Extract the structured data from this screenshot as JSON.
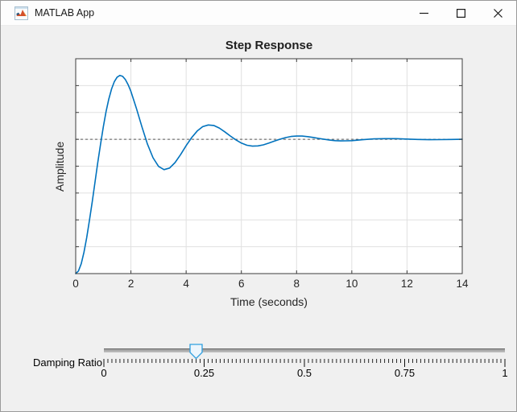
{
  "window": {
    "title": "MATLAB App"
  },
  "chart_data": {
    "type": "line",
    "title": "Step Response",
    "xlabel": "Time (seconds)",
    "ylabel": "Amplitude",
    "xlim": [
      0,
      14
    ],
    "ylim": [
      0,
      1.6
    ],
    "xticks": [
      0,
      2,
      4,
      6,
      8,
      10,
      12,
      14
    ],
    "xtick_labels": [
      "0",
      "2",
      "4",
      "6",
      "8",
      "10",
      "12",
      "14"
    ],
    "yticks": [
      0.2,
      0.4,
      0.6,
      0.8,
      1.0,
      1.2,
      1.4
    ],
    "ytick_labels": [],
    "grid": true,
    "line_color": "#0072BD",
    "reference_line": {
      "y": 1.0,
      "style": "dashed",
      "color": "#5A5A5A"
    },
    "series": [
      {
        "name": "step response",
        "x": [
          0,
          0.1,
          0.2,
          0.3,
          0.4,
          0.5,
          0.6,
          0.7,
          0.8,
          0.9,
          1,
          1.1,
          1.2,
          1.3,
          1.4,
          1.5,
          1.6,
          1.7,
          1.8,
          1.9,
          2,
          2.2,
          2.4,
          2.6,
          2.8,
          3,
          3.2,
          3.4,
          3.6,
          3.8,
          4,
          4.2,
          4.4,
          4.6,
          4.8,
          5,
          5.2,
          5.4,
          5.6,
          5.8,
          6,
          6.2,
          6.4,
          6.6,
          6.8,
          7,
          7.2,
          7.4,
          7.6,
          7.8,
          8,
          8.2,
          8.4,
          8.6,
          8.8,
          9,
          9.2,
          9.4,
          9.6,
          9.8,
          10,
          10.4,
          10.8,
          11.2,
          11.6,
          12,
          12.4,
          12.8,
          13.2,
          13.6,
          14
        ],
        "y": [
          0,
          0.019,
          0.074,
          0.16,
          0.269,
          0.398,
          0.537,
          0.682,
          0.827,
          0.965,
          1.093,
          1.206,
          1.3,
          1.376,
          1.43,
          1.463,
          1.476,
          1.469,
          1.445,
          1.407,
          1.356,
          1.23,
          1.092,
          0.964,
          0.863,
          0.798,
          0.774,
          0.786,
          0.827,
          0.886,
          0.952,
          1.013,
          1.062,
          1.094,
          1.107,
          1.103,
          1.084,
          1.056,
          1.025,
          0.996,
          0.972,
          0.956,
          0.949,
          0.951,
          0.959,
          0.972,
          0.987,
          1.001,
          1.013,
          1.021,
          1.024,
          1.024,
          1.02,
          1.014,
          1.007,
          1,
          0.994,
          0.99,
          0.988,
          0.989,
          0.99,
          0.997,
          1.003,
          1.005,
          1.005,
          1.002,
          0.999,
          0.997,
          0.998,
          0.999,
          1
        ]
      }
    ]
  },
  "slider": {
    "label": "Damping Ratio",
    "min": 0,
    "max": 1,
    "value": 0.23,
    "major_tick_values": [
      0,
      0.25,
      0.5,
      0.75,
      1
    ],
    "major_tick_labels": [
      "0",
      "0.25",
      "0.5",
      "0.75",
      "1"
    ],
    "minor_tick_step": 0.01,
    "thumb_fill": "#ECF5FC",
    "thumb_border": "#2E9FDF"
  },
  "colors": {
    "figure_bg": "#F0F0F0",
    "titlebar_bg": "#FDFDFD",
    "plot_bg": "#FFFFFF",
    "grid_color": "#E0E0E0",
    "axis_color": "#3C3C3C",
    "tick_text_color": "#262626"
  }
}
